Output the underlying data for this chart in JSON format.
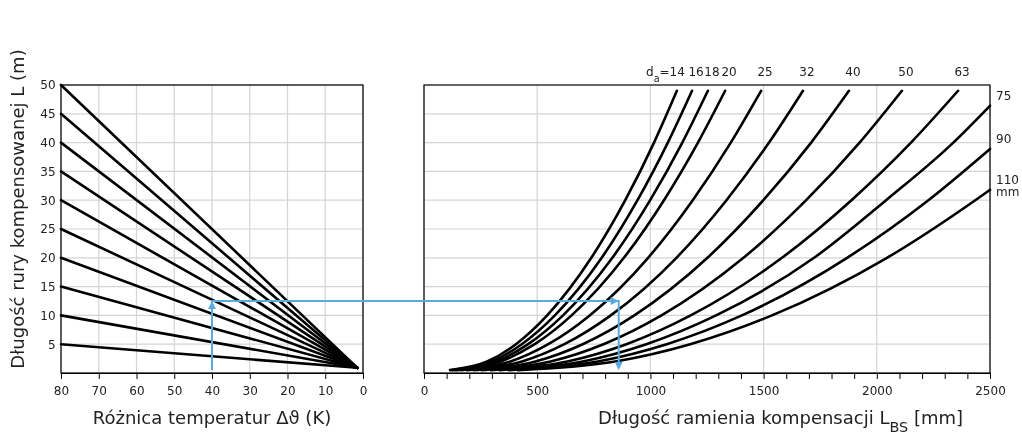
{
  "chart_data": [
    {
      "type": "line",
      "ylabel": "Długość rury kompensowanej L (m)",
      "xlabel": "Różnica temperatur Δϑ (K)",
      "xlim": [
        80,
        0
      ],
      "xticks": [
        80,
        70,
        60,
        50,
        40,
        30,
        20,
        10,
        0
      ],
      "ylim": [
        0,
        50
      ],
      "yticks": [
        5,
        10,
        15,
        20,
        25,
        30,
        35,
        40,
        45,
        50
      ],
      "grid": true,
      "x": [
        80,
        1.5
      ],
      "series": [
        {
          "color": "#000000",
          "values": [
            5,
            0.9
          ]
        },
        {
          "color": "#000000",
          "values": [
            10,
            0.9
          ]
        },
        {
          "color": "#000000",
          "values": [
            15,
            0.9
          ]
        },
        {
          "color": "#000000",
          "values": [
            20,
            0.9
          ]
        },
        {
          "color": "#000000",
          "values": [
            25,
            0.9
          ]
        },
        {
          "color": "#000000",
          "values": [
            30,
            0.9
          ]
        },
        {
          "color": "#000000",
          "values": [
            35,
            0.9
          ]
        },
        {
          "color": "#000000",
          "values": [
            40,
            0.9
          ]
        },
        {
          "color": "#000000",
          "values": [
            45,
            0.9
          ]
        },
        {
          "color": "#000000",
          "values": [
            50,
            0.9
          ]
        }
      ]
    },
    {
      "type": "line",
      "xlabel": "Długość ramienia kompensacji L$_{BS}$ [mm]",
      "xlim": [
        0,
        2500
      ],
      "xticks": [
        0,
        {
          "value": 100,
          "label": null
        },
        {
          "value": 200,
          "label": null
        },
        {
          "value": 300,
          "label": null
        },
        {
          "value": 400,
          "label": null
        },
        500,
        {
          "value": 600,
          "label": null
        },
        {
          "value": 700,
          "label": null
        },
        {
          "value": 800,
          "label": null
        },
        {
          "value": 900,
          "label": null
        },
        1000,
        {
          "value": 1100,
          "label": null
        },
        {
          "value": 1200,
          "label": null
        },
        {
          "value": 1300,
          "label": null
        },
        {
          "value": 1400,
          "label": null
        },
        1500,
        {
          "value": 1600,
          "label": null
        },
        {
          "value": 1700,
          "label": null
        },
        {
          "value": 1800,
          "label": null
        },
        {
          "value": 1900,
          "label": null
        },
        2000,
        {
          "value": 2100,
          "label": null
        },
        {
          "value": 2200,
          "label": null
        },
        {
          "value": 2300,
          "label": null
        },
        {
          "value": 2400,
          "label": null
        },
        2500
      ],
      "ylim": [
        0,
        50
      ],
      "yticks": [
        {
          "value": 5,
          "label": null
        },
        {
          "value": 10,
          "label": null
        },
        {
          "value": 15,
          "label": null
        },
        {
          "value": 20,
          "label": null
        },
        {
          "value": 25,
          "label": null
        },
        {
          "value": 30,
          "label": null
        },
        {
          "value": 35,
          "label": null
        },
        {
          "value": 40,
          "label": null
        },
        {
          "value": 45,
          "label": null
        }
      ],
      "grid": true,
      "tick_labels": "x",
      "series": [
        {
          "name": "d$_{a}$=14",
          "color": "#000000",
          "x": [
            115,
            279,
            406,
            544,
            739,
            889,
            1016,
            1117
          ],
          "values": [
            0.5,
            2,
            5,
            10,
            20,
            30,
            40,
            49
          ]
        },
        {
          "name": "16",
          "color": "#000000",
          "x": [
            125,
            299,
            432,
            578,
            785,
            943,
            1077,
            1184
          ],
          "values": [
            0.5,
            2,
            5,
            10,
            20,
            30,
            40,
            49
          ]
        },
        {
          "name": "18",
          "color": "#000000",
          "x": [
            135,
            319,
            460,
            614,
            832,
            999,
            1141,
            1254
          ],
          "values": [
            0.5,
            2,
            5,
            10,
            20,
            30,
            40,
            49
          ]
        },
        {
          "name": "20",
          "color": "#000000",
          "x": [
            145,
            339,
            489,
            652,
            883,
            1060,
            1210,
            1330
          ],
          "values": [
            0.5,
            2,
            5,
            10,
            20,
            30,
            40,
            49
          ]
        },
        {
          "name": "25",
          "color": "#000000",
          "x": [
            165,
            382,
            549,
            732,
            990,
            1187,
            1355,
            1489
          ],
          "values": [
            0.5,
            2,
            5,
            10,
            20,
            30,
            40,
            49
          ]
        },
        {
          "name": "32",
          "color": "#000000",
          "x": [
            190,
            433,
            620,
            825,
            1115,
            1336,
            1524,
            1674
          ],
          "values": [
            0.5,
            2,
            5,
            10,
            20,
            30,
            40,
            49
          ]
        },
        {
          "name": "40",
          "color": "#000000",
          "x": [
            220,
            492,
            701,
            929,
            1252,
            1499,
            1710,
            1877
          ],
          "values": [
            0.5,
            2,
            5,
            10,
            20,
            30,
            40,
            49
          ]
        },
        {
          "name": "50",
          "color": "#000000",
          "x": [
            255,
            559,
            793,
            1049,
            1411,
            1688,
            1924,
            2111
          ],
          "values": [
            0.5,
            2,
            5,
            10,
            20,
            30,
            40,
            49
          ]
        },
        {
          "name": "63",
          "color": "#000000",
          "x": [
            295,
            633,
            894,
            1178,
            1581,
            1888,
            2151,
            2359
          ],
          "values": [
            0.5,
            2,
            5,
            10,
            20,
            30,
            40,
            49
          ]
        },
        {
          "name": "75",
          "color": "#000000",
          "x": [
            335,
            701,
            982,
            1290,
            1723,
            2041,
            2338,
            2500
          ],
          "values": [
            0.5,
            2,
            5,
            10,
            20,
            30,
            40,
            46.4
          ]
        },
        {
          "name": "90",
          "color": "#000000",
          "x": [
            375,
            768,
            1072,
            1404,
            1869,
            2228,
            2500
          ],
          "values": [
            0.5,
            2,
            5,
            10,
            20,
            30,
            38.9
          ]
        },
        {
          "name": "110 mm",
          "color": "#000000",
          "x": [
            415,
            845,
            1176,
            1537,
            2045,
            2435,
            2500
          ],
          "values": [
            0.5,
            2,
            5,
            10,
            20,
            30,
            31.8
          ]
        }
      ]
    }
  ]
}
